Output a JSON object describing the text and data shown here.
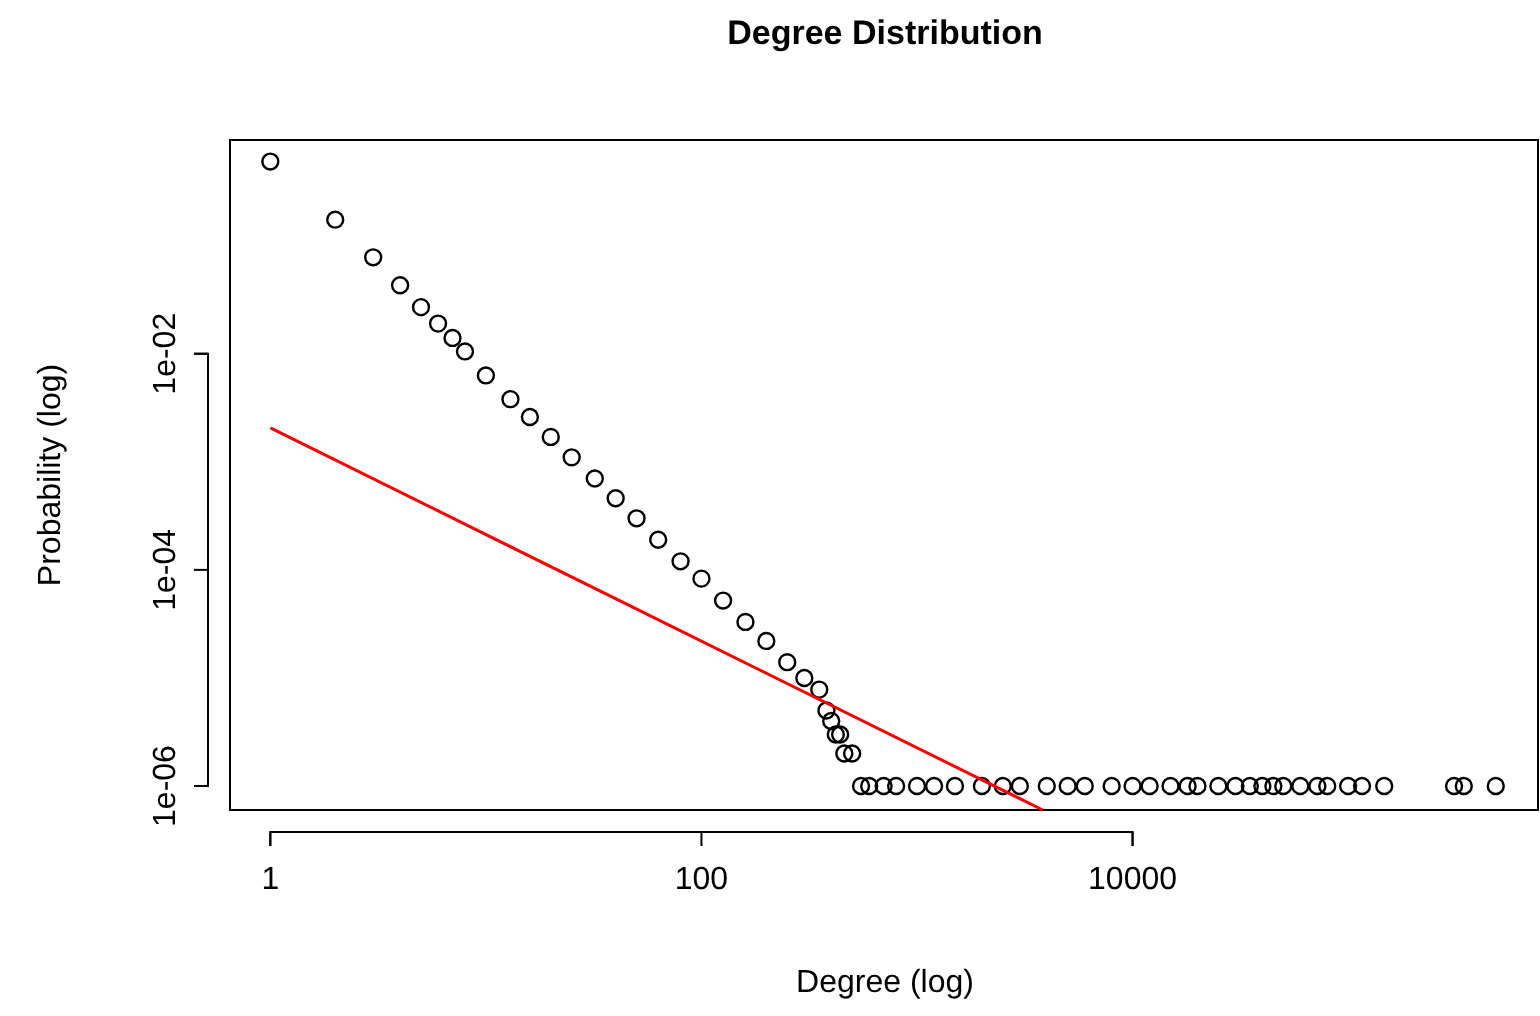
{
  "chart_data": {
    "type": "scatter",
    "title": "Degree Distribution",
    "xlabel": "Degree (log)",
    "ylabel": "Probability (log)",
    "log": "xy",
    "marker": "circle",
    "xlim": [
      0.65,
      760000
    ],
    "ylim": [
      6e-07,
      0.95
    ],
    "xticks": [
      1,
      100,
      10000
    ],
    "yticks": [
      {
        "value": 0.01,
        "label": "1e-02"
      },
      {
        "value": 0.0001,
        "label": "1e-04"
      },
      {
        "value": 1e-06,
        "label": "1e-06"
      }
    ],
    "series": [
      {
        "color": "#000000",
        "x": [
          1,
          2,
          3,
          4,
          5,
          6,
          7,
          8,
          10,
          13,
          16,
          20,
          25,
          32,
          40,
          50,
          63,
          80,
          100,
          126,
          160,
          200,
          250,
          300,
          352,
          380,
          400,
          420,
          440,
          460,
          500,
          550,
          600,
          700,
          800,
          1000,
          1200,
          1500,
          2000,
          2500,
          3000,
          4000,
          5000,
          6000,
          8000,
          10000,
          12000,
          15000,
          18000,
          20000,
          25000,
          30000,
          35000,
          40000,
          45000,
          50000,
          60000,
          72000,
          80000,
          100000,
          116000,
          147000,
          310000,
          344000,
          484000
        ],
        "values": [
          0.6,
          0.174,
          0.078,
          0.043,
          0.027,
          0.019,
          0.014,
          0.0105,
          0.0063,
          0.0038,
          0.0026,
          0.0017,
          0.0011,
          0.0007,
          0.00046,
          0.0003,
          0.00019,
          0.00012,
          8.3e-05,
          5.2e-05,
          3.3e-05,
          2.2e-05,
          1.4e-05,
          1e-05,
          7.8e-06,
          5e-06,
          4e-06,
          3e-06,
          3e-06,
          2e-06,
          2e-06,
          1e-06,
          1e-06,
          1e-06,
          1e-06,
          1e-06,
          1e-06,
          1e-06,
          1e-06,
          1e-06,
          1e-06,
          1e-06,
          1e-06,
          1e-06,
          1e-06,
          1e-06,
          1e-06,
          1e-06,
          1e-06,
          1e-06,
          1e-06,
          1e-06,
          1e-06,
          1e-06,
          1e-06,
          1e-06,
          1e-06,
          1e-06,
          1e-06,
          1e-06,
          1e-06,
          1e-06,
          1e-06,
          1e-06,
          1e-06
        ]
      },
      {
        "type": "line",
        "color": "#ff0000",
        "marker": "none",
        "x": [
          1,
          3830
        ],
        "values": [
          0.00206,
          6e-07
        ]
      }
    ]
  }
}
